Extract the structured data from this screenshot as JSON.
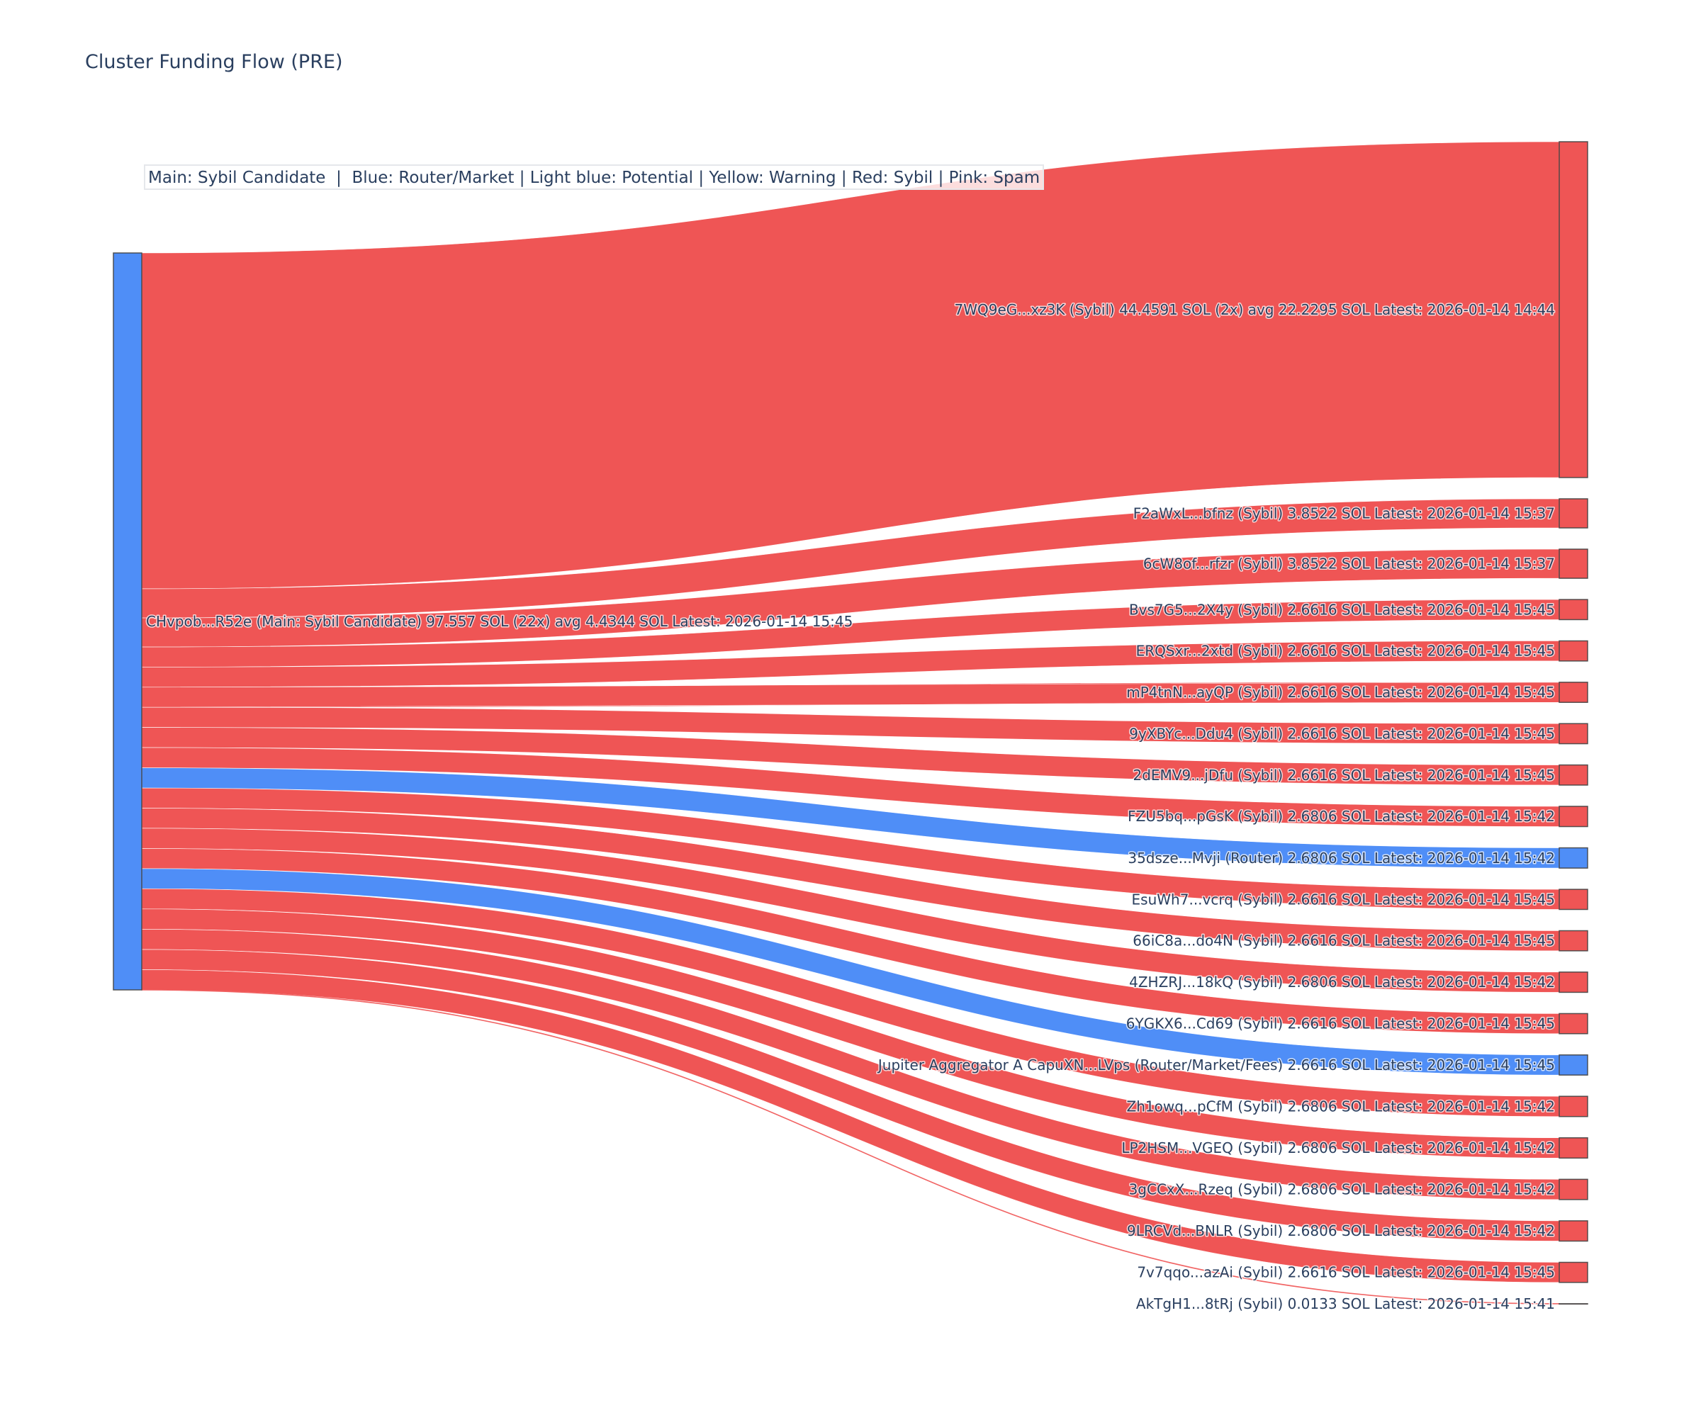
{
  "title": "Cluster Funding Flow (PRE)",
  "legend_text": "Main: Sybil Candidate  |  Blue: Router/Market | Light blue: Potential | Yellow: Warning | Red: Sybil | Pink: Spam",
  "colors": {
    "sybil": "#ef5555",
    "router": "#4f8ef7",
    "main_node": "#4f8ef7",
    "node_border": "#444444",
    "text": "#2a3f5f"
  },
  "chart_data": {
    "type": "sankey",
    "title": "Cluster Funding Flow (PRE)",
    "unit": "SOL",
    "source": {
      "id": "CHvpob...R52e",
      "label": "CHvpob...R52e (Main: Sybil Candidate) 97.557 SOL (22x) avg 4.4344 SOL Latest: 2026-01-14 15:45",
      "role": "Main: Sybil Candidate",
      "total": 97.557,
      "count": 22,
      "avg": 4.4344,
      "latest": "2026-01-14 15:45",
      "color_key": "main_node"
    },
    "targets": [
      {
        "id": "7WQ9eG...xz3K",
        "label": "7WQ9eG...xz3K (Sybil) 44.4591 SOL (2x) avg 22.2295 SOL Latest: 2026-01-14 14:44",
        "role": "Sybil",
        "value": 44.4591,
        "latest": "2026-01-14 14:44",
        "color_key": "sybil"
      },
      {
        "id": "F2aWxL...bfnz",
        "label": "F2aWxL...bfnz (Sybil) 3.8522 SOL Latest: 2026-01-14 15:37",
        "role": "Sybil",
        "value": 3.8522,
        "latest": "2026-01-14 15:37",
        "color_key": "sybil"
      },
      {
        "id": "6cW8of...rfzr",
        "label": "6cW8of...rfzr (Sybil) 3.8522 SOL Latest: 2026-01-14 15:37",
        "role": "Sybil",
        "value": 3.8522,
        "latest": "2026-01-14 15:37",
        "color_key": "sybil"
      },
      {
        "id": "Bvs7G5...2X4y",
        "label": "Bvs7G5...2X4y (Sybil) 2.6616 SOL Latest: 2026-01-14 15:45",
        "role": "Sybil",
        "value": 2.6616,
        "latest": "2026-01-14 15:45",
        "color_key": "sybil"
      },
      {
        "id": "ERQSxr...2xtd",
        "label": "ERQSxr...2xtd (Sybil) 2.6616 SOL Latest: 2026-01-14 15:45",
        "role": "Sybil",
        "value": 2.6616,
        "latest": "2026-01-14 15:45",
        "color_key": "sybil"
      },
      {
        "id": "mP4tnN...ayQP",
        "label": "mP4tnN...ayQP (Sybil) 2.6616 SOL Latest: 2026-01-14 15:45",
        "role": "Sybil",
        "value": 2.6616,
        "latest": "2026-01-14 15:45",
        "color_key": "sybil"
      },
      {
        "id": "9yXBYc...Ddu4",
        "label": "9yXBYc...Ddu4 (Sybil) 2.6616 SOL Latest: 2026-01-14 15:45",
        "role": "Sybil",
        "value": 2.6616,
        "latest": "2026-01-14 15:45",
        "color_key": "sybil"
      },
      {
        "id": "2dEMV9...jDfu",
        "label": "2dEMV9...jDfu (Sybil) 2.6616 SOL Latest: 2026-01-14 15:45",
        "role": "Sybil",
        "value": 2.6616,
        "latest": "2026-01-14 15:45",
        "color_key": "sybil"
      },
      {
        "id": "FZU5bq...pGsK",
        "label": "FZU5bq...pGsK (Sybil) 2.6806 SOL Latest: 2026-01-14 15:42",
        "role": "Sybil",
        "value": 2.6806,
        "latest": "2026-01-14 15:42",
        "color_key": "sybil"
      },
      {
        "id": "35dsze...Mvji",
        "label": "35dsze...Mvji (Router) 2.6806 SOL Latest: 2026-01-14 15:42",
        "role": "Router",
        "value": 2.6806,
        "latest": "2026-01-14 15:42",
        "color_key": "router"
      },
      {
        "id": "EsuWh7...vcrq",
        "label": "EsuWh7...vcrq (Sybil) 2.6616 SOL Latest: 2026-01-14 15:45",
        "role": "Sybil",
        "value": 2.6616,
        "latest": "2026-01-14 15:45",
        "color_key": "sybil"
      },
      {
        "id": "66iC8a...do4N",
        "label": "66iC8a...do4N (Sybil) 2.6616 SOL Latest: 2026-01-14 15:45",
        "role": "Sybil",
        "value": 2.6616,
        "latest": "2026-01-14 15:45",
        "color_key": "sybil"
      },
      {
        "id": "4ZHZRJ...18kQ",
        "label": "4ZHZRJ...18kQ (Sybil) 2.6806 SOL Latest: 2026-01-14 15:42",
        "role": "Sybil",
        "value": 2.6806,
        "latest": "2026-01-14 15:42",
        "color_key": "sybil"
      },
      {
        "id": "6YGKX6...Cd69",
        "label": "6YGKX6...Cd69 (Sybil) 2.6616 SOL Latest: 2026-01-14 15:45",
        "role": "Sybil",
        "value": 2.6616,
        "latest": "2026-01-14 15:45",
        "color_key": "sybil"
      },
      {
        "id": "CapuXN...LVps",
        "label": "Jupiter Aggregator A CapuXN...LVps (Router/Market/Fees) 2.6616 SOL Latest: 2026-01-14 15:45",
        "role": "Router/Market/Fees",
        "value": 2.6616,
        "latest": "2026-01-14 15:45",
        "color_key": "router"
      },
      {
        "id": "Zh1owq...pCfM",
        "label": "Zh1owq...pCfM (Sybil) 2.6806 SOL Latest: 2026-01-14 15:42",
        "role": "Sybil",
        "value": 2.6806,
        "latest": "2026-01-14 15:42",
        "color_key": "sybil"
      },
      {
        "id": "LP2HSM...VGEQ",
        "label": "LP2HSM...VGEQ (Sybil) 2.6806 SOL Latest: 2026-01-14 15:42",
        "role": "Sybil",
        "value": 2.6806,
        "latest": "2026-01-14 15:42",
        "color_key": "sybil"
      },
      {
        "id": "3gCCxX...Rzeq",
        "label": "3gCCxX...Rzeq (Sybil) 2.6806 SOL Latest: 2026-01-14 15:42",
        "role": "Sybil",
        "value": 2.6806,
        "latest": "2026-01-14 15:42",
        "color_key": "sybil"
      },
      {
        "id": "9LRCVd...BNLR",
        "label": "9LRCVd...BNLR (Sybil) 2.6806 SOL Latest: 2026-01-14 15:42",
        "role": "Sybil",
        "value": 2.6806,
        "latest": "2026-01-14 15:42",
        "color_key": "sybil"
      },
      {
        "id": "7v7qqo...azAi",
        "label": "7v7qqo...azAi (Sybil) 2.6616 SOL Latest: 2026-01-14 15:45",
        "role": "Sybil",
        "value": 2.6616,
        "latest": "2026-01-14 15:45",
        "color_key": "sybil"
      },
      {
        "id": "AkTgH1...8tRj",
        "label": "AkTgH1...8tRj (Sybil) 0.0133 SOL Latest: 2026-01-14 15:41",
        "role": "Sybil",
        "value": 0.0133,
        "latest": "2026-01-14 15:41",
        "color_key": "sybil"
      }
    ]
  }
}
